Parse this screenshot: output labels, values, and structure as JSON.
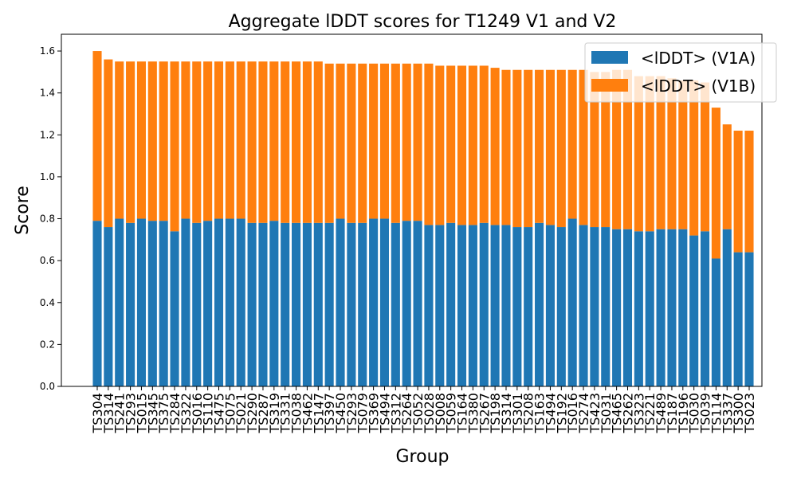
{
  "chart_data": {
    "type": "bar",
    "stacked": true,
    "title": "Aggregate lDDT scores for T1249 V1 and V2",
    "xlabel": "Group",
    "ylabel": "Score",
    "ylim": [
      0,
      1.68
    ],
    "yticks": [
      0.0,
      0.2,
      0.4,
      0.6,
      0.8,
      1.0,
      1.2,
      1.4,
      1.6
    ],
    "legend_position": "top-right",
    "colors": {
      "v1a": "#1f77b4",
      "v1b": "#ff7f0e"
    },
    "categories": [
      "TS304",
      "TS314",
      "TS241",
      "TS293",
      "TS015",
      "TS345",
      "TS375",
      "TS284",
      "TS322",
      "TS016",
      "TS110",
      "TS475",
      "TS075",
      "TS021",
      "TS290",
      "TS287",
      "TS319",
      "TS331",
      "TS038",
      "TS462",
      "TS147",
      "TS397",
      "TS450",
      "TS293",
      "TS079",
      "TS369",
      "TS494",
      "TS312",
      "TS264",
      "TS052",
      "TS028",
      "TS008",
      "TS059",
      "TS164",
      "TS380",
      "TS267",
      "TS198",
      "TS314",
      "TS301",
      "TS208",
      "TS163",
      "TS494",
      "TS192",
      "TS016",
      "TS274",
      "TS423",
      "TS031",
      "TS465",
      "TS262",
      "TS323",
      "TS221",
      "TS489",
      "TS187",
      "TS196",
      "TS030",
      "TS039",
      "TS114",
      "TS337",
      "TS300",
      "TS023"
    ],
    "series": [
      {
        "name": "<lDDT> (V1A)",
        "values": [
          0.79,
          0.76,
          0.8,
          0.78,
          0.8,
          0.79,
          0.79,
          0.74,
          0.8,
          0.78,
          0.79,
          0.8,
          0.8,
          0.8,
          0.78,
          0.78,
          0.79,
          0.78,
          0.78,
          0.78,
          0.78,
          0.78,
          0.8,
          0.78,
          0.78,
          0.8,
          0.8,
          0.78,
          0.79,
          0.79,
          0.77,
          0.77,
          0.78,
          0.77,
          0.77,
          0.78,
          0.77,
          0.77,
          0.76,
          0.76,
          0.78,
          0.77,
          0.76,
          0.8,
          0.77,
          0.76,
          0.76,
          0.75,
          0.75,
          0.74,
          0.74,
          0.75,
          0.75,
          0.75,
          0.72,
          0.74,
          0.61,
          0.75,
          0.64,
          0.64
        ]
      },
      {
        "name": "<lDDT> (V1B)",
        "values": [
          0.81,
          0.8,
          0.75,
          0.77,
          0.75,
          0.76,
          0.76,
          0.81,
          0.75,
          0.77,
          0.76,
          0.75,
          0.75,
          0.75,
          0.77,
          0.77,
          0.76,
          0.77,
          0.77,
          0.77,
          0.77,
          0.76,
          0.74,
          0.76,
          0.76,
          0.74,
          0.74,
          0.76,
          0.75,
          0.75,
          0.77,
          0.76,
          0.75,
          0.76,
          0.76,
          0.75,
          0.75,
          0.74,
          0.75,
          0.75,
          0.73,
          0.74,
          0.75,
          0.71,
          0.74,
          0.74,
          0.74,
          0.76,
          0.76,
          0.74,
          0.74,
          0.73,
          0.72,
          0.71,
          0.74,
          0.71,
          0.72,
          0.5,
          0.58,
          0.58
        ]
      }
    ]
  }
}
